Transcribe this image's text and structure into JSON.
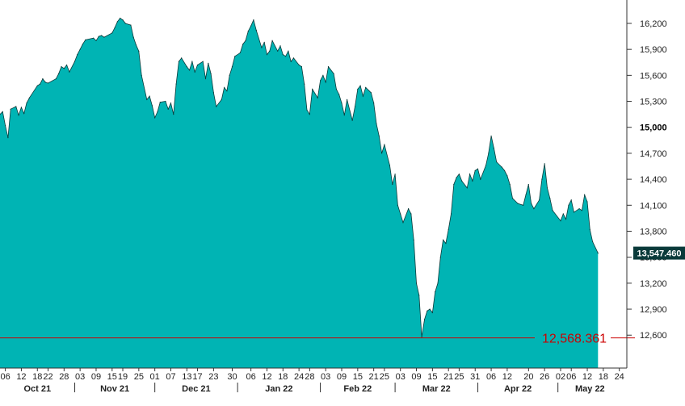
{
  "chart_data": {
    "type": "area",
    "y_axis": {
      "ticks": [
        "16,200",
        "15,900",
        "15,600",
        "15,300",
        "15,000",
        "14,700",
        "14,400",
        "14,100",
        "13,800",
        "13,500",
        "13,200",
        "12,900",
        "12,600"
      ],
      "bold_tick": "15,000",
      "range": [
        12220,
        16470
      ]
    },
    "x_axis": {
      "range": [
        "2021-10-04",
        "2022-05-25"
      ],
      "day_ticks": [
        {
          "date": "2021-10-06",
          "label": "06"
        },
        {
          "date": "2021-10-12",
          "label": "12"
        },
        {
          "date": "2021-10-18",
          "label": "18"
        },
        {
          "date": "2021-10-22",
          "label": "22"
        },
        {
          "date": "2021-10-28",
          "label": "28"
        },
        {
          "date": "2021-11-03",
          "label": "03"
        },
        {
          "date": "2021-11-09",
          "label": "09"
        },
        {
          "date": "2021-11-15",
          "label": "15"
        },
        {
          "date": "2021-11-19",
          "label": "19"
        },
        {
          "date": "2021-11-25",
          "label": "25"
        },
        {
          "date": "2021-12-01",
          "label": "01"
        },
        {
          "date": "2021-12-07",
          "label": "07"
        },
        {
          "date": "2021-12-13",
          "label": "13"
        },
        {
          "date": "2021-12-17",
          "label": "17"
        },
        {
          "date": "2021-12-23",
          "label": "23"
        },
        {
          "date": "2021-12-30",
          "label": "30"
        },
        {
          "date": "2022-01-06",
          "label": "06"
        },
        {
          "date": "2022-01-12",
          "label": "12"
        },
        {
          "date": "2022-01-18",
          "label": "18"
        },
        {
          "date": "2022-01-24",
          "label": "24"
        },
        {
          "date": "2022-01-28",
          "label": "28"
        },
        {
          "date": "2022-02-03",
          "label": "03"
        },
        {
          "date": "2022-02-09",
          "label": "09"
        },
        {
          "date": "2022-02-15",
          "label": "15"
        },
        {
          "date": "2022-02-21",
          "label": "21"
        },
        {
          "date": "2022-02-25",
          "label": "25"
        },
        {
          "date": "2022-03-03",
          "label": "03"
        },
        {
          "date": "2022-03-09",
          "label": "09"
        },
        {
          "date": "2022-03-15",
          "label": "15"
        },
        {
          "date": "2022-03-21",
          "label": "21"
        },
        {
          "date": "2022-03-25",
          "label": "25"
        },
        {
          "date": "2022-03-31",
          "label": "31"
        },
        {
          "date": "2022-04-06",
          "label": "06"
        },
        {
          "date": "2022-04-12",
          "label": "12"
        },
        {
          "date": "2022-04-20",
          "label": "20"
        },
        {
          "date": "2022-04-26",
          "label": "26"
        },
        {
          "date": "2022-05-02",
          "label": "02"
        },
        {
          "date": "2022-05-06",
          "label": "06"
        },
        {
          "date": "2022-05-12",
          "label": "12"
        },
        {
          "date": "2022-05-18",
          "label": "18"
        },
        {
          "date": "2022-05-24",
          "label": "24"
        }
      ],
      "months": [
        {
          "label": "Oct 21",
          "start": "2021-10-04",
          "end": "2021-11-01"
        },
        {
          "label": "Nov 21",
          "start": "2021-11-01",
          "end": "2021-12-01"
        },
        {
          "label": "Dec 21",
          "start": "2021-12-01",
          "end": "2022-01-01"
        },
        {
          "label": "Jan 22",
          "start": "2022-01-01",
          "end": "2022-02-01"
        },
        {
          "label": "Feb 22",
          "start": "2022-02-01",
          "end": "2022-03-01"
        },
        {
          "label": "Mar 22",
          "start": "2022-03-01",
          "end": "2022-04-01"
        },
        {
          "label": "Apr 22",
          "start": "2022-04-01",
          "end": "2022-05-01"
        },
        {
          "label": "May 22",
          "start": "2022-05-01",
          "end": "2022-05-25"
        }
      ]
    },
    "series": [
      {
        "fill_color": "#00b4b4",
        "stroke_color": "#0a3a3a",
        "points": [
          [
            "2021-10-04",
            15150
          ],
          [
            "2021-10-05",
            15180
          ],
          [
            "2021-10-06",
            15020
          ],
          [
            "2021-10-07",
            14880
          ],
          [
            "2021-10-08",
            15210
          ],
          [
            "2021-10-10",
            15240
          ],
          [
            "2021-10-11",
            15140
          ],
          [
            "2021-10-12",
            15230
          ],
          [
            "2021-10-13",
            15160
          ],
          [
            "2021-10-14",
            15280
          ],
          [
            "2021-10-15",
            15340
          ],
          [
            "2021-10-18",
            15480
          ],
          [
            "2021-10-19",
            15500
          ],
          [
            "2021-10-20",
            15560
          ],
          [
            "2021-10-21",
            15520
          ],
          [
            "2021-10-22",
            15510
          ],
          [
            "2021-10-25",
            15560
          ],
          [
            "2021-10-26",
            15620
          ],
          [
            "2021-10-27",
            15700
          ],
          [
            "2021-10-28",
            15680
          ],
          [
            "2021-10-29",
            15720
          ],
          [
            "2021-10-30",
            15640
          ],
          [
            "2021-11-01",
            15760
          ],
          [
            "2021-11-02",
            15840
          ],
          [
            "2021-11-03",
            15900
          ],
          [
            "2021-11-04",
            15960
          ],
          [
            "2021-11-05",
            16010
          ],
          [
            "2021-11-08",
            16030
          ],
          [
            "2021-11-09",
            16000
          ],
          [
            "2021-11-10",
            16050
          ],
          [
            "2021-11-11",
            16060
          ],
          [
            "2021-11-12",
            16040
          ],
          [
            "2021-11-15",
            16090
          ],
          [
            "2021-11-16",
            16150
          ],
          [
            "2021-11-17",
            16220
          ],
          [
            "2021-11-18",
            16260
          ],
          [
            "2021-11-19",
            16240
          ],
          [
            "2021-11-20",
            16200
          ],
          [
            "2021-11-22",
            16180
          ],
          [
            "2021-11-23",
            16040
          ],
          [
            "2021-11-24",
            15950
          ],
          [
            "2021-11-25",
            15880
          ],
          [
            "2021-11-26",
            15600
          ],
          [
            "2021-11-28",
            15320
          ],
          [
            "2021-11-29",
            15360
          ],
          [
            "2021-11-30",
            15250
          ],
          [
            "2021-12-01",
            15110
          ],
          [
            "2021-12-02",
            15180
          ],
          [
            "2021-12-03",
            15290
          ],
          [
            "2021-12-05",
            15300
          ],
          [
            "2021-12-06",
            15210
          ],
          [
            "2021-12-07",
            15280
          ],
          [
            "2021-12-08",
            15150
          ],
          [
            "2021-12-09",
            15500
          ],
          [
            "2021-12-10",
            15760
          ],
          [
            "2021-12-11",
            15800
          ],
          [
            "2021-12-13",
            15700
          ],
          [
            "2021-12-14",
            15660
          ],
          [
            "2021-12-15",
            15760
          ],
          [
            "2021-12-16",
            15640
          ],
          [
            "2021-12-17",
            15720
          ],
          [
            "2021-12-19",
            15760
          ],
          [
            "2021-12-20",
            15560
          ],
          [
            "2021-12-21",
            15740
          ],
          [
            "2021-12-22",
            15620
          ],
          [
            "2021-12-23",
            15400
          ],
          [
            "2021-12-24",
            15240
          ],
          [
            "2021-12-26",
            15320
          ],
          [
            "2021-12-27",
            15460
          ],
          [
            "2021-12-28",
            15420
          ],
          [
            "2021-12-29",
            15600
          ],
          [
            "2021-12-30",
            15700
          ],
          [
            "2021-12-31",
            15820
          ],
          [
            "2022-01-02",
            15860
          ],
          [
            "2022-01-03",
            15960
          ],
          [
            "2022-01-04",
            16000
          ],
          [
            "2022-01-05",
            16110
          ],
          [
            "2022-01-06",
            16170
          ],
          [
            "2022-01-07",
            16240
          ],
          [
            "2022-01-08",
            16120
          ],
          [
            "2022-01-10",
            15920
          ],
          [
            "2022-01-11",
            15980
          ],
          [
            "2022-01-12",
            15840
          ],
          [
            "2022-01-13",
            15880
          ],
          [
            "2022-01-14",
            16000
          ],
          [
            "2022-01-16",
            15880
          ],
          [
            "2022-01-17",
            15940
          ],
          [
            "2022-01-18",
            15840
          ],
          [
            "2022-01-19",
            15820
          ],
          [
            "2022-01-20",
            15880
          ],
          [
            "2022-01-21",
            15760
          ],
          [
            "2022-01-22",
            15800
          ],
          [
            "2022-01-24",
            15720
          ],
          [
            "2022-01-25",
            15700
          ],
          [
            "2022-01-26",
            15500
          ],
          [
            "2022-01-27",
            15200
          ],
          [
            "2022-01-28",
            15150
          ],
          [
            "2022-01-29",
            15440
          ],
          [
            "2022-01-31",
            15340
          ],
          [
            "2022-02-01",
            15540
          ],
          [
            "2022-02-02",
            15600
          ],
          [
            "2022-02-03",
            15520
          ],
          [
            "2022-02-04",
            15700
          ],
          [
            "2022-02-06",
            15620
          ],
          [
            "2022-02-07",
            15440
          ],
          [
            "2022-02-08",
            15380
          ],
          [
            "2022-02-09",
            15280
          ],
          [
            "2022-02-10",
            15140
          ],
          [
            "2022-02-11",
            15320
          ],
          [
            "2022-02-13",
            15080
          ],
          [
            "2022-02-14",
            15240
          ],
          [
            "2022-02-15",
            15440
          ],
          [
            "2022-02-16",
            15480
          ],
          [
            "2022-02-17",
            15360
          ],
          [
            "2022-02-18",
            15460
          ],
          [
            "2022-02-20",
            15400
          ],
          [
            "2022-02-21",
            15280
          ],
          [
            "2022-02-22",
            15040
          ],
          [
            "2022-02-23",
            14900
          ],
          [
            "2022-02-24",
            14700
          ],
          [
            "2022-02-25",
            14800
          ],
          [
            "2022-02-27",
            14560
          ],
          [
            "2022-02-28",
            14340
          ],
          [
            "2022-03-01",
            14460
          ],
          [
            "2022-03-02",
            14100
          ],
          [
            "2022-03-03",
            14000
          ],
          [
            "2022-03-04",
            13900
          ],
          [
            "2022-03-06",
            14060
          ],
          [
            "2022-03-07",
            14000
          ],
          [
            "2022-03-08",
            13700
          ],
          [
            "2022-03-09",
            13200
          ],
          [
            "2022-03-10",
            13060
          ],
          [
            "2022-03-11",
            12580
          ],
          [
            "2022-03-12",
            12780
          ],
          [
            "2022-03-13",
            12880
          ],
          [
            "2022-03-14",
            12900
          ],
          [
            "2022-03-15",
            12860
          ],
          [
            "2022-03-16",
            13100
          ],
          [
            "2022-03-17",
            13200
          ],
          [
            "2022-03-18",
            13500
          ],
          [
            "2022-03-19",
            13700
          ],
          [
            "2022-03-20",
            13660
          ],
          [
            "2022-03-21",
            13820
          ],
          [
            "2022-03-22",
            14000
          ],
          [
            "2022-03-23",
            14340
          ],
          [
            "2022-03-24",
            14420
          ],
          [
            "2022-03-25",
            14460
          ],
          [
            "2022-03-26",
            14380
          ],
          [
            "2022-03-28",
            14300
          ],
          [
            "2022-03-29",
            14460
          ],
          [
            "2022-03-30",
            14380
          ],
          [
            "2022-03-31",
            14500
          ],
          [
            "2022-04-01",
            14520
          ],
          [
            "2022-04-02",
            14400
          ],
          [
            "2022-04-04",
            14560
          ],
          [
            "2022-04-05",
            14700
          ],
          [
            "2022-04-06",
            14900
          ],
          [
            "2022-04-07",
            14760
          ],
          [
            "2022-04-08",
            14600
          ],
          [
            "2022-04-10",
            14540
          ],
          [
            "2022-04-11",
            14500
          ],
          [
            "2022-04-12",
            14440
          ],
          [
            "2022-04-13",
            14340
          ],
          [
            "2022-04-14",
            14180
          ],
          [
            "2022-04-16",
            14120
          ],
          [
            "2022-04-18",
            14100
          ],
          [
            "2022-04-19",
            14220
          ],
          [
            "2022-04-20",
            14340
          ],
          [
            "2022-04-21",
            14120
          ],
          [
            "2022-04-22",
            14060
          ],
          [
            "2022-04-24",
            14160
          ],
          [
            "2022-04-25",
            14400
          ],
          [
            "2022-04-26",
            14580
          ],
          [
            "2022-04-27",
            14300
          ],
          [
            "2022-04-28",
            14180
          ],
          [
            "2022-04-29",
            14040
          ],
          [
            "2022-05-02",
            13920
          ],
          [
            "2022-05-03",
            14000
          ],
          [
            "2022-05-04",
            13940
          ],
          [
            "2022-05-05",
            14100
          ],
          [
            "2022-05-06",
            14160
          ],
          [
            "2022-05-07",
            14020
          ],
          [
            "2022-05-09",
            14060
          ],
          [
            "2022-05-10",
            14040
          ],
          [
            "2022-05-11",
            14220
          ],
          [
            "2022-05-12",
            14140
          ],
          [
            "2022-05-13",
            13820
          ],
          [
            "2022-05-14",
            13680
          ],
          [
            "2022-05-16",
            13547
          ]
        ]
      }
    ],
    "last_value": {
      "value": 13547.46,
      "label": "13,547.460",
      "box_color": "#0a3a3a"
    },
    "reference_line": {
      "value": 12568.361,
      "label": "12,568.361",
      "color": "#cc0000"
    }
  }
}
